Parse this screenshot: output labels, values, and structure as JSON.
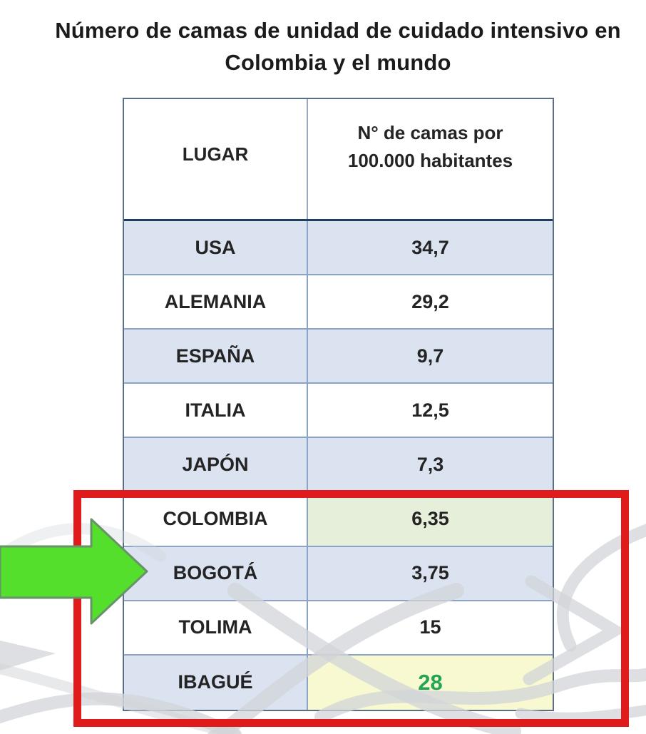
{
  "title": {
    "line1": "Número de camas de unidad de cuidado intensivo en",
    "line2": "Colombia y el mundo"
  },
  "table": {
    "header": {
      "col1": "LUGAR",
      "col2_line1": "N° de camas  por",
      "col2_line2": "100.000 habitantes"
    },
    "rows": [
      {
        "lugar": "USA",
        "valor": "34,7"
      },
      {
        "lugar": "ALEMANIA",
        "valor": "29,2"
      },
      {
        "lugar": "ESPAÑA",
        "valor": "9,7"
      },
      {
        "lugar": "ITALIA",
        "valor": "12,5"
      },
      {
        "lugar": "JAPÓN",
        "valor": "7,3"
      },
      {
        "lugar": "COLOMBIA",
        "valor": "6,35",
        "valor_highlight": "green"
      },
      {
        "lugar": "BOGOTÁ",
        "valor": "3,75"
      },
      {
        "lugar": "TOLIMA",
        "valor": "15"
      },
      {
        "lugar": "IBAGUÉ",
        "valor": "28",
        "valor_highlight": "yellow_green_text"
      }
    ]
  },
  "annotations": {
    "highlight_box_rows": [
      "COLOMBIA",
      "BOGOTÁ",
      "TOLIMA",
      "IBAGUÉ"
    ],
    "arrow_points_to": "BOGOTÁ"
  },
  "colors": {
    "row_alt_blue": "#dbe3f1",
    "row_white": "#ffffff",
    "colombia_value_bg": "#e5efd9",
    "ibague_value_bg": "#f8f8d1",
    "ibague_value_text": "#23a455",
    "highlight_box": "#e01b1b",
    "arrow_fill": "#54df2d",
    "arrow_stroke": "#69926b",
    "inner_border": "#8ba3c6",
    "header_divider": "#1f3c61"
  },
  "chart_data": {
    "type": "table",
    "title": "Número de camas de unidad de cuidado intensivo en Colombia y el mundo",
    "columns": [
      "LUGAR",
      "N° de camas por 100.000 habitantes"
    ],
    "categories": [
      "USA",
      "ALEMANIA",
      "ESPAÑA",
      "ITALIA",
      "JAPÓN",
      "COLOMBIA",
      "BOGOTÁ",
      "TOLIMA",
      "IBAGUÉ"
    ],
    "values": [
      34.7,
      29.2,
      9.7,
      12.5,
      7.3,
      6.35,
      3.75,
      15,
      28
    ],
    "annotations": {
      "boxed_rows": [
        "COLOMBIA",
        "BOGOTÁ",
        "TOLIMA",
        "IBAGUÉ"
      ],
      "arrow_target_row": "BOGOTÁ",
      "green_highlight_value": 6.35,
      "yellow_highlight_value": 28
    }
  }
}
